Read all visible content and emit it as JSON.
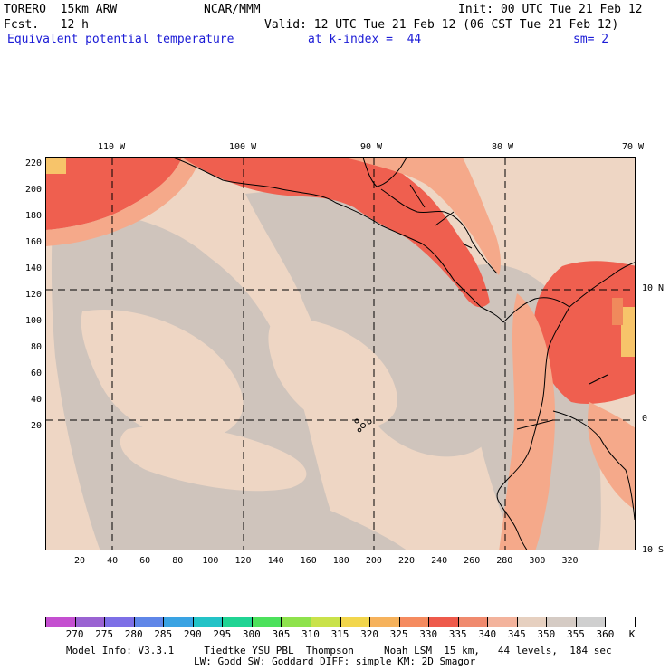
{
  "header": {
    "model": "TORERO  15km ARW",
    "org": "NCAR/MMM",
    "init": "Init: 00 UTC Tue 21 Feb 12",
    "fcst": "Fcst.   12 h",
    "valid": "Valid: 12 UTC Tue 21 Feb 12 (06 CST Tue 21 Feb 12)",
    "field": "Equivalent potential temperature",
    "level": "at k-index =  44",
    "smooth": "sm= 2"
  },
  "map": {
    "top_lon_labels": [
      "110 W",
      "100 W",
      "90 W",
      "80 W",
      "70 W"
    ],
    "right_lat_labels": [
      "10 N",
      "0",
      "10 S"
    ],
    "y_ticks": [
      "220",
      "200",
      "180",
      "160",
      "140",
      "120",
      "100",
      "80",
      "60",
      "40",
      "20"
    ],
    "x_ticks": [
      "20",
      "40",
      "60",
      "80",
      "100",
      "120",
      "140",
      "160",
      "180",
      "200",
      "220",
      "240",
      "260",
      "280",
      "300",
      "320"
    ],
    "colors": {
      "background": "#eed6c4",
      "cool": "#cfc4bc",
      "warm": "#f5a98a",
      "hot": "#ef5f4f",
      "hotter": "#f08a5c",
      "peak": "#f7c46a",
      "coast": "#000000"
    }
  },
  "colorbar": {
    "labels": [
      "270",
      "275",
      "280",
      "285",
      "290",
      "295",
      "300",
      "305",
      "310",
      "315",
      "320",
      "325",
      "330",
      "335",
      "340",
      "345",
      "350",
      "355",
      "360"
    ],
    "unit": "K",
    "colors": [
      "#c44fd0",
      "#9a63d2",
      "#7d6fe6",
      "#5f86e8",
      "#3aa3e3",
      "#23c3c7",
      "#20d494",
      "#4ce15c",
      "#8ee24c",
      "#c9e24a",
      "#f2d64d",
      "#f6b25c",
      "#f58b5f",
      "#ee5a4b",
      "#f08a6e",
      "#f3b39c",
      "#e6d0c0",
      "#d5cbc4",
      "#cfcfcf",
      "#ffffff"
    ]
  },
  "footer": {
    "line1": "Model Info: V3.3.1     Tiedtke YSU PBL  Thompson     Noah LSM  15 km,   44 levels,  184 sec",
    "line2": "LW: Godd SW: Goddard DIFF: simple KM: 2D Smagor"
  }
}
